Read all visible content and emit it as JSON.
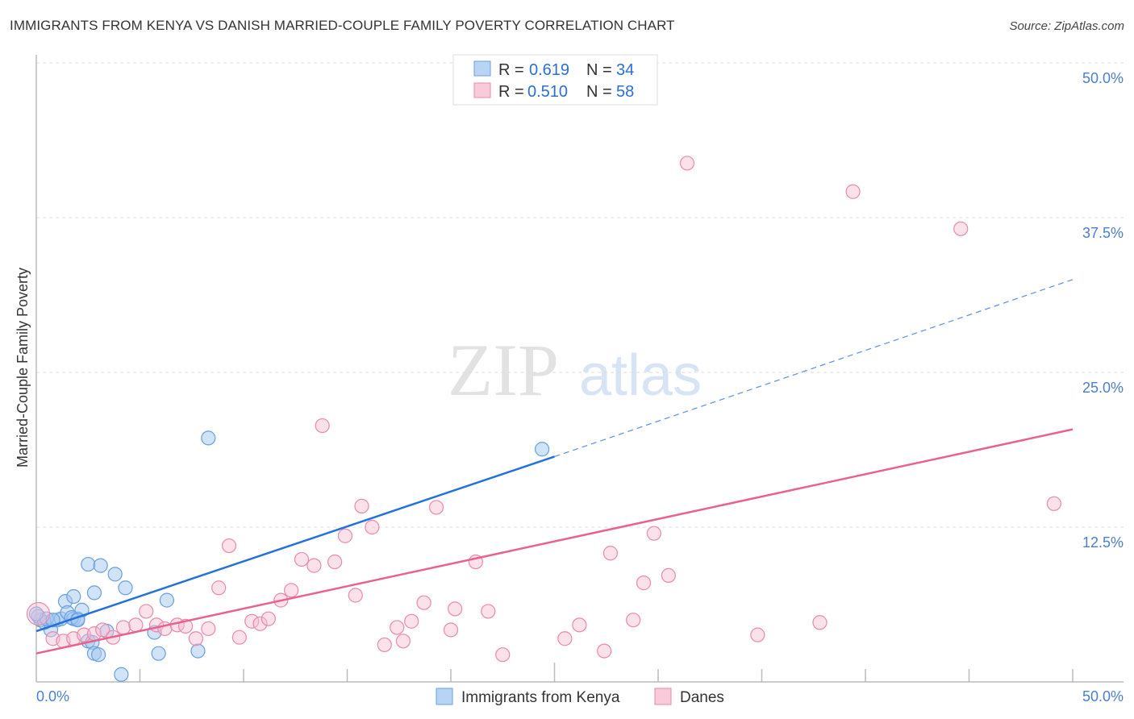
{
  "title": "IMMIGRANTS FROM KENYA VS DANISH MARRIED-COUPLE FAMILY POVERTY CORRELATION CHART",
  "source": "Source: ZipAtlas.com",
  "watermark": {
    "zip": "ZIP",
    "atlas": "atlas"
  },
  "chart_data": {
    "type": "scatter",
    "title": "IMMIGRANTS FROM KENYA VS DANISH MARRIED-COUPLE FAMILY POVERTY CORRELATION CHART",
    "xlabel": "",
    "ylabel": "Married-Couple Family Poverty",
    "xlim": [
      0,
      50
    ],
    "ylim": [
      0,
      50
    ],
    "x_tick_labels": [
      "0.0%",
      "50.0%"
    ],
    "y_ticks": [
      12.5,
      25,
      37.5,
      50
    ],
    "y_tick_labels": [
      "12.5%",
      "25.0%",
      "37.5%",
      "50.0%"
    ],
    "grid": true,
    "legend_placement": "top-center",
    "legend": [
      {
        "r_label": "R = ",
        "r": "0.619",
        "n_label": "N = ",
        "n": "34"
      },
      {
        "r_label": "R = ",
        "r": "0.510",
        "n_label": "N = ",
        "n": "58"
      }
    ],
    "series": [
      {
        "name": "Immigrants from Kenya",
        "color": "#6a9fe0",
        "trend": {
          "x0": 0,
          "y0": 4.1,
          "x_solid_end": 25,
          "y_solid_end": 18.2,
          "x1": 50,
          "y1": 32.5
        },
        "points": [
          [
            0.2,
            5.0
          ],
          [
            0.1,
            5.3
          ],
          [
            0.4,
            4.8
          ],
          [
            0.7,
            4.2
          ],
          [
            1.0,
            5.0
          ],
          [
            1.2,
            5.1
          ],
          [
            1.4,
            6.5
          ],
          [
            1.5,
            5.6
          ],
          [
            1.8,
            6.9
          ],
          [
            1.8,
            5.1
          ],
          [
            2.0,
            5.1
          ],
          [
            2.2,
            5.8
          ],
          [
            2.5,
            9.5
          ],
          [
            2.5,
            3.3
          ],
          [
            2.7,
            3.2
          ],
          [
            2.8,
            2.3
          ],
          [
            2.8,
            7.2
          ],
          [
            3.0,
            2.2
          ],
          [
            3.1,
            9.4
          ],
          [
            3.4,
            4.1
          ],
          [
            3.8,
            8.7
          ],
          [
            4.1,
            0.6
          ],
          [
            4.3,
            7.6
          ],
          [
            5.7,
            4.0
          ],
          [
            5.9,
            2.3
          ],
          [
            6.3,
            6.6
          ],
          [
            7.8,
            2.5
          ],
          [
            8.3,
            19.7
          ],
          [
            24.4,
            18.8
          ],
          [
            0.5,
            5.1
          ],
          [
            0.8,
            5.0
          ],
          [
            1.7,
            5.2
          ],
          [
            2.0,
            5.0
          ],
          [
            0.0,
            5.5
          ]
        ]
      },
      {
        "name": "Danes",
        "color": "#e88aa8",
        "trend": {
          "x0": 0,
          "y0": 2.3,
          "x1": 50,
          "y1": 20.4
        },
        "points": [
          [
            0.1,
            5.5
          ],
          [
            0.8,
            3.5
          ],
          [
            1.3,
            3.3
          ],
          [
            1.8,
            3.5
          ],
          [
            2.3,
            3.8
          ],
          [
            2.8,
            3.9
          ],
          [
            3.2,
            4.2
          ],
          [
            3.7,
            3.6
          ],
          [
            4.2,
            4.4
          ],
          [
            4.8,
            4.6
          ],
          [
            5.3,
            5.7
          ],
          [
            5.8,
            4.6
          ],
          [
            6.2,
            4.3
          ],
          [
            6.8,
            4.6
          ],
          [
            7.2,
            4.5
          ],
          [
            7.7,
            3.5
          ],
          [
            8.3,
            4.3
          ],
          [
            8.8,
            7.6
          ],
          [
            9.3,
            11.0
          ],
          [
            9.8,
            3.6
          ],
          [
            10.4,
            4.9
          ],
          [
            10.8,
            4.7
          ],
          [
            11.2,
            5.1
          ],
          [
            11.8,
            6.6
          ],
          [
            12.3,
            7.4
          ],
          [
            12.8,
            9.9
          ],
          [
            13.4,
            9.4
          ],
          [
            13.8,
            20.7
          ],
          [
            14.4,
            9.7
          ],
          [
            14.9,
            11.8
          ],
          [
            15.4,
            7.0
          ],
          [
            15.7,
            14.2
          ],
          [
            16.2,
            12.5
          ],
          [
            16.8,
            3.0
          ],
          [
            17.4,
            4.4
          ],
          [
            17.7,
            3.3
          ],
          [
            18.1,
            4.9
          ],
          [
            18.7,
            6.4
          ],
          [
            19.3,
            14.1
          ],
          [
            20.0,
            4.2
          ],
          [
            20.2,
            5.9
          ],
          [
            21.2,
            9.7
          ],
          [
            21.8,
            5.7
          ],
          [
            22.5,
            2.2
          ],
          [
            25.5,
            3.5
          ],
          [
            26.2,
            4.6
          ],
          [
            27.4,
            2.5
          ],
          [
            27.7,
            10.4
          ],
          [
            28.8,
            5.0
          ],
          [
            29.3,
            8.0
          ],
          [
            29.8,
            12.0
          ],
          [
            30.5,
            8.6
          ],
          [
            31.4,
            41.9
          ],
          [
            34.8,
            3.8
          ],
          [
            37.8,
            4.8
          ],
          [
            39.4,
            39.6
          ],
          [
            44.6,
            36.6
          ],
          [
            49.1,
            14.4
          ]
        ]
      }
    ]
  }
}
